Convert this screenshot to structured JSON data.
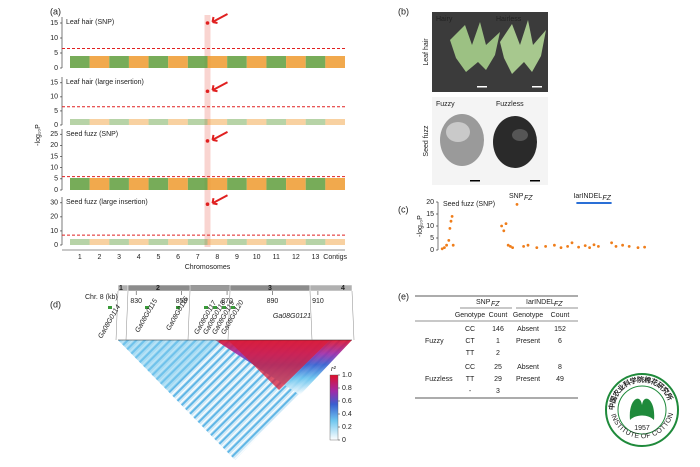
{
  "panel_a": {
    "label": "(a)",
    "y_axis_label": "-log₁₀P",
    "x_axis_label": "Chromosomes",
    "chromosomes": [
      "1",
      "2",
      "3",
      "4",
      "5",
      "6",
      "7",
      "8",
      "9",
      "10",
      "11",
      "12",
      "13",
      "Contigs"
    ],
    "plots": [
      {
        "title": "Leaf hair (SNP)",
        "ylim": [
          0,
          16
        ],
        "yticks": [
          0,
          5,
          10,
          15
        ],
        "threshold": 6.5,
        "peak": 15
      },
      {
        "title": "Leaf hair (large insertion)",
        "ylim": [
          0,
          16
        ],
        "yticks": [
          0,
          5,
          10,
          15
        ],
        "threshold": 6.5,
        "peak": 12
      },
      {
        "title": "Seed fuzz (SNP)",
        "ylim": [
          0,
          26
        ],
        "yticks": [
          0,
          5,
          10,
          15,
          20,
          25
        ],
        "threshold": 6,
        "peak": 22
      },
      {
        "title": "Seed fuzz (large insertion)",
        "ylim": [
          0,
          32
        ],
        "yticks": [
          0,
          10,
          20,
          30
        ],
        "threshold": 7,
        "peak": 29
      }
    ]
  },
  "panel_b": {
    "label": "(b)",
    "top_row": "Leaf hair",
    "bottom_row": "Seed fuzz",
    "top_left": "Hairy",
    "top_right": "Hairless",
    "bottom_left": "Fuzzy",
    "bottom_right": "Fuzzless"
  },
  "panel_c": {
    "label": "(c)",
    "title": "Seed fuzz (SNP)",
    "y_axis_label": "-log₁₀P",
    "snp": "SNP",
    "snp_sub": "FZ",
    "indel": "IarINDEL",
    "indel_sub": "FZ",
    "ylim": [
      0,
      20
    ],
    "yticks": [
      0,
      5,
      10,
      15,
      20
    ],
    "xlim": [
      0,
      100
    ],
    "indel_region": [
      62,
      78
    ],
    "x": [
      1,
      2,
      3,
      4,
      4.5,
      5,
      5.5,
      6,
      28,
      29,
      30,
      31,
      32,
      33,
      35,
      38,
      40,
      44,
      48,
      52,
      55,
      58,
      60,
      63,
      66,
      68,
      70,
      72,
      78,
      80,
      83,
      86,
      90,
      93
    ],
    "y": [
      0.5,
      1,
      2,
      4,
      9,
      12,
      14,
      2,
      10,
      8,
      11,
      2,
      1.5,
      1,
      19,
      1.5,
      2,
      1,
      1.5,
      2,
      1,
      1.5,
      3,
      1.2,
      1.8,
      1,
      2.2,
      1.5,
      3,
      1.5,
      2,
      1.5,
      1,
      1.2
    ]
  },
  "panel_d": {
    "label": "(d)",
    "axis_label": "Chr. 8 (kb)",
    "xlim": [
      822,
      925
    ],
    "xticks": [
      830,
      850,
      870,
      890,
      910
    ],
    "blocks": [
      "1",
      "2",
      "3",
      "4"
    ],
    "genes": [
      "Ga08G0114",
      "Ga08G0115",
      "Ga08G0116",
      "Ga08G0117",
      "Ga08G0118",
      "Ga08G0119",
      "Ga08G0120",
      "Ga08G0121"
    ],
    "legend_title": "r²",
    "legend_lim": [
      0,
      1
    ],
    "legend_ticks": [
      0,
      0.2,
      0.4,
      0.6,
      0.8,
      {
        "value": 1,
        "label": "1.0"
      }
    ]
  },
  "panel_e": {
    "label": "(e)",
    "snp": "SNP",
    "snp_sub": "FZ",
    "indel": "IarINDEL",
    "indel_sub": "FZ",
    "columns": [
      "Genotype",
      "Count",
      "Genotype",
      "Count"
    ],
    "groups": [
      {
        "name": "Fuzzy",
        "rows": [
          [
            "CC",
            "146",
            "Absent",
            "152"
          ],
          [
            "CT",
            "1",
            "Present",
            "6"
          ],
          [
            "TT",
            "2"
          ]
        ]
      },
      {
        "name": "Fuzzless",
        "rows": [
          [
            "CC",
            "25",
            "Absent",
            "8"
          ],
          [
            "TT",
            "29",
            "Present",
            "49"
          ],
          [
            "-",
            "3"
          ]
        ]
      }
    ]
  },
  "logo": {
    "name_cn": "中国农业科学院棉花研究所",
    "name_en": "INSTITUTE OF COTTON RESEARCH OF CAAS",
    "year": "1957"
  }
}
